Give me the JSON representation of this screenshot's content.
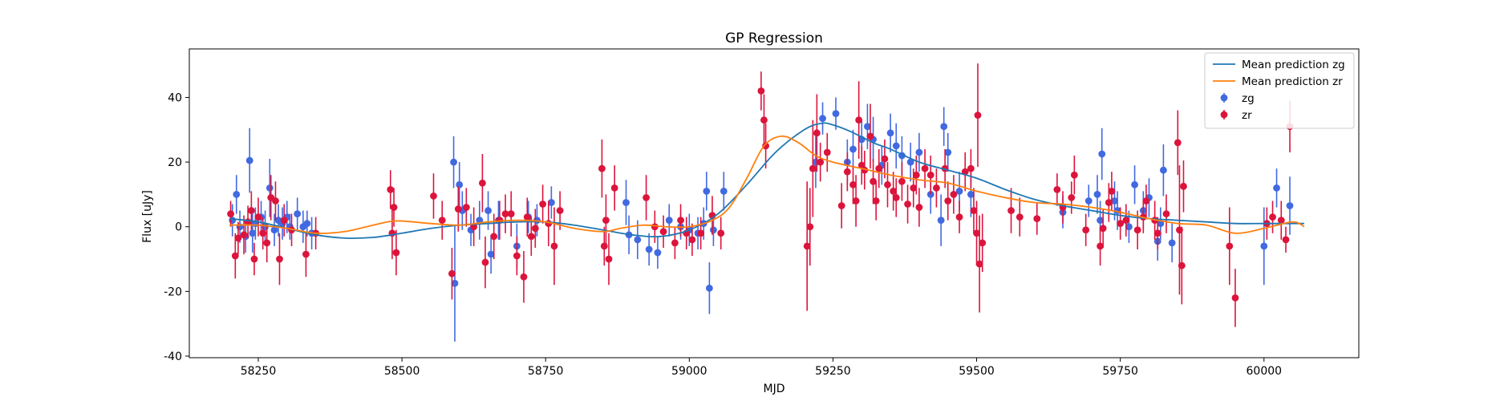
{
  "chart_data": {
    "type": "scatter",
    "title": "GP Regression",
    "xlabel": "MJD",
    "ylabel": "Flux [uJy]",
    "xlim": [
      58130,
      60165
    ],
    "ylim": [
      -40.5,
      55
    ],
    "xticks": [
      58250,
      58500,
      58750,
      59000,
      59250,
      59500,
      59750,
      60000
    ],
    "yticks": [
      -40,
      -20,
      0,
      20,
      40
    ],
    "legend_position": "top-right",
    "legend": [
      {
        "label": "Mean prediction zg",
        "kind": "line",
        "color": "#1f77b4"
      },
      {
        "label": "Mean prediction zr",
        "kind": "line",
        "color": "#ff7f0e"
      },
      {
        "label": "zg",
        "kind": "errorbar",
        "color": "#4169e1"
      },
      {
        "label": "zr",
        "kind": "errorbar",
        "color": "#dc143c"
      }
    ],
    "lines": [
      {
        "name": "Mean prediction zg",
        "color": "#1f77b4",
        "x": [
          58200,
          58250,
          58300,
          58350,
          58400,
          58450,
          58500,
          58550,
          58600,
          58650,
          58700,
          58750,
          58800,
          58850,
          58900,
          58950,
          59000,
          59050,
          59100,
          59150,
          59200,
          59230,
          59250,
          59280,
          59320,
          59350,
          59400,
          59450,
          59500,
          59550,
          59600,
          59650,
          59700,
          59750,
          59800,
          59850,
          59900,
          59950,
          60000,
          60050,
          60070
        ],
        "y": [
          2.5,
          1.5,
          -0.5,
          -2.5,
          -3.5,
          -3.3,
          -2,
          -0.5,
          0.5,
          1,
          1.5,
          1.5,
          0.5,
          -1,
          -2.5,
          -3,
          -1,
          4,
          13,
          23,
          30,
          32,
          31.5,
          29.5,
          26,
          24,
          20,
          17.5,
          15,
          11.5,
          8.5,
          6.5,
          5,
          3.5,
          2.5,
          2,
          1.5,
          1,
          1,
          1,
          1
        ]
      },
      {
        "name": "Mean prediction zr",
        "color": "#ff7f0e",
        "x": [
          58200,
          58250,
          58300,
          58350,
          58400,
          58450,
          58490,
          58550,
          58600,
          58650,
          58700,
          58750,
          58800,
          58850,
          58880,
          58920,
          58960,
          59000,
          59040,
          59070,
          59100,
          59130,
          59160,
          59190,
          59220,
          59250,
          59300,
          59350,
          59400,
          59450,
          59500,
          59550,
          59600,
          59650,
          59700,
          59750,
          59800,
          59850,
          59900,
          59950,
          60000,
          60050,
          60070
        ],
        "y": [
          0.5,
          0.5,
          -0.5,
          -2,
          -1.5,
          0.5,
          1.8,
          1,
          0.5,
          1.5,
          2,
          1.5,
          -0.5,
          -1.5,
          -0.5,
          0.5,
          0,
          0,
          2,
          6,
          15,
          25,
          28,
          26,
          22,
          20,
          18,
          16,
          14.5,
          13.5,
          11,
          9,
          7.5,
          7,
          6,
          4.5,
          2.5,
          1,
          0.5,
          -2,
          -0.5,
          1.5,
          0
        ]
      }
    ],
    "series": [
      {
        "name": "zg",
        "color": "#4169e1",
        "points": [
          [
            58205,
            2,
            5
          ],
          [
            58212,
            10,
            6
          ],
          [
            58218,
            0,
            5
          ],
          [
            58228,
            -3,
            5
          ],
          [
            58235,
            20.5,
            10
          ],
          [
            58240,
            -2,
            6
          ],
          [
            58245,
            1,
            5
          ],
          [
            58255,
            3,
            5
          ],
          [
            58262,
            0,
            5
          ],
          [
            58270,
            12,
            9
          ],
          [
            58278,
            -1,
            5
          ],
          [
            58285,
            2,
            5
          ],
          [
            58292,
            1,
            5
          ],
          [
            58300,
            3,
            5
          ],
          [
            58305,
            0,
            4
          ],
          [
            58318,
            4,
            5
          ],
          [
            58328,
            0,
            5
          ],
          [
            58335,
            1,
            4
          ],
          [
            58343,
            -2,
            5
          ],
          [
            58590,
            20,
            8
          ],
          [
            58592,
            -17.5,
            18
          ],
          [
            58600,
            13,
            7
          ],
          [
            58605,
            5,
            6
          ],
          [
            58620,
            -1,
            5
          ],
          [
            58635,
            2,
            6
          ],
          [
            58650,
            5,
            6
          ],
          [
            58655,
            -8.5,
            6
          ],
          [
            58668,
            2,
            6
          ],
          [
            58700,
            -6,
            7
          ],
          [
            58720,
            3,
            5
          ],
          [
            58735,
            2,
            5
          ],
          [
            58760,
            7.5,
            5
          ],
          [
            58890,
            7.5,
            7
          ],
          [
            58895,
            -2.5,
            6
          ],
          [
            58910,
            -4,
            6
          ],
          [
            58930,
            -7,
            5
          ],
          [
            58945,
            -8,
            5
          ],
          [
            58965,
            2,
            5
          ],
          [
            58985,
            0,
            4
          ],
          [
            59000,
            -1,
            5
          ],
          [
            59015,
            -2,
            5
          ],
          [
            59025,
            1,
            5
          ],
          [
            59030,
            11,
            6
          ],
          [
            59035,
            -19,
            8
          ],
          [
            59042,
            -1,
            5
          ],
          [
            59060,
            11,
            6
          ],
          [
            59220,
            20,
            8
          ],
          [
            59232,
            33.5,
            5
          ],
          [
            59255,
            35,
            5
          ],
          [
            59275,
            20,
            7
          ],
          [
            59285,
            24,
            6
          ],
          [
            59300,
            27,
            6
          ],
          [
            59310,
            31,
            7
          ],
          [
            59320,
            27,
            7
          ],
          [
            59335,
            19,
            6
          ],
          [
            59350,
            29,
            6
          ],
          [
            59360,
            25,
            7
          ],
          [
            59370,
            22,
            6
          ],
          [
            59385,
            20,
            6
          ],
          [
            59400,
            23,
            6
          ],
          [
            59420,
            10,
            6
          ],
          [
            59438,
            2,
            8
          ],
          [
            59443,
            31,
            6
          ],
          [
            59450,
            23,
            6
          ],
          [
            59470,
            11,
            6
          ],
          [
            59490,
            10,
            7
          ],
          [
            59650,
            4.5,
            5
          ],
          [
            59695,
            8,
            5
          ],
          [
            59710,
            10,
            6
          ],
          [
            59715,
            2,
            6
          ],
          [
            59718,
            22.5,
            8
          ],
          [
            59740,
            8,
            6
          ],
          [
            59745,
            5,
            6
          ],
          [
            59765,
            0,
            5
          ],
          [
            59775,
            13,
            6
          ],
          [
            59790,
            5,
            6
          ],
          [
            59800,
            9,
            6
          ],
          [
            59815,
            -4.5,
            6
          ],
          [
            59820,
            1,
            5
          ],
          [
            59825,
            17.5,
            8
          ],
          [
            59840,
            -5,
            6
          ],
          [
            60000,
            -6,
            12
          ],
          [
            60022,
            12,
            6
          ],
          [
            60045,
            6.5,
            9
          ]
        ]
      },
      {
        "name": "zr",
        "color": "#dc143c",
        "points": [
          [
            58202,
            4,
            4
          ],
          [
            58210,
            -9,
            7
          ],
          [
            58215,
            -3.5,
            5
          ],
          [
            58225,
            -2.5,
            6
          ],
          [
            58232,
            1.5,
            5
          ],
          [
            58238,
            5,
            6
          ],
          [
            58243,
            -10,
            5
          ],
          [
            58250,
            3,
            6
          ],
          [
            58258,
            -2,
            5
          ],
          [
            58265,
            -5,
            6
          ],
          [
            58272,
            9,
            7
          ],
          [
            58280,
            8,
            6
          ],
          [
            58287,
            -10,
            8
          ],
          [
            58295,
            2,
            5
          ],
          [
            58308,
            -1,
            5
          ],
          [
            58333,
            -8.5,
            7
          ],
          [
            58350,
            -2,
            5
          ],
          [
            58480,
            11.5,
            6
          ],
          [
            58483,
            -2,
            8
          ],
          [
            58486,
            6,
            6
          ],
          [
            58490,
            -8,
            7
          ],
          [
            58555,
            9.5,
            7
          ],
          [
            58570,
            2,
            6
          ],
          [
            58587,
            -14.5,
            8
          ],
          [
            58598,
            5.5,
            7
          ],
          [
            58612,
            6,
            6
          ],
          [
            58625,
            0,
            6
          ],
          [
            58640,
            13.5,
            9
          ],
          [
            58645,
            -11,
            8
          ],
          [
            58660,
            -3,
            7
          ],
          [
            58670,
            2,
            6
          ],
          [
            58680,
            4,
            6
          ],
          [
            58690,
            4,
            7
          ],
          [
            58700,
            -9,
            6
          ],
          [
            58712,
            -15.5,
            8
          ],
          [
            58718,
            3,
            6
          ],
          [
            58725,
            -3,
            6
          ],
          [
            58732,
            -0.5,
            6
          ],
          [
            58745,
            7,
            6
          ],
          [
            58755,
            1,
            7
          ],
          [
            58765,
            -6,
            12
          ],
          [
            58775,
            5,
            6
          ],
          [
            58848,
            18,
            9
          ],
          [
            58852,
            -6,
            6
          ],
          [
            58855,
            2,
            8
          ],
          [
            58860,
            -10,
            8
          ],
          [
            58870,
            12,
            7
          ],
          [
            58925,
            9,
            7
          ],
          [
            58940,
            0,
            5
          ],
          [
            58955,
            -1.5,
            5
          ],
          [
            58975,
            -5,
            5
          ],
          [
            58985,
            2,
            5
          ],
          [
            58995,
            -2,
            5
          ],
          [
            59005,
            -4,
            5
          ],
          [
            59020,
            -2,
            5
          ],
          [
            59040,
            3.5,
            6
          ],
          [
            59055,
            -2,
            5
          ],
          [
            59125,
            42,
            6
          ],
          [
            59130,
            33,
            8
          ],
          [
            59133,
            25,
            7
          ],
          [
            59205,
            -6,
            20
          ],
          [
            59210,
            0,
            12
          ],
          [
            59215,
            18,
            15
          ],
          [
            59222,
            29,
            12
          ],
          [
            59228,
            20,
            6
          ],
          [
            59240,
            23,
            6
          ],
          [
            59265,
            6.5,
            7
          ],
          [
            59275,
            17,
            6
          ],
          [
            59285,
            13,
            6
          ],
          [
            59290,
            8,
            8
          ],
          [
            59295,
            33,
            12
          ],
          [
            59300,
            19,
            6
          ],
          [
            59305,
            17.5,
            6
          ],
          [
            59315,
            28,
            10
          ],
          [
            59320,
            14,
            7
          ],
          [
            59325,
            8,
            6
          ],
          [
            59330,
            18,
            6
          ],
          [
            59340,
            21,
            6
          ],
          [
            59345,
            13,
            7
          ],
          [
            59355,
            11,
            6
          ],
          [
            59360,
            9,
            6
          ],
          [
            59370,
            14,
            6
          ],
          [
            59380,
            7,
            6
          ],
          [
            59390,
            12,
            6
          ],
          [
            59395,
            16,
            6
          ],
          [
            59400,
            6,
            6
          ],
          [
            59410,
            18,
            6
          ],
          [
            59420,
            16,
            6
          ],
          [
            59430,
            12,
            6
          ],
          [
            59445,
            18,
            6
          ],
          [
            59450,
            8,
            6
          ],
          [
            59460,
            10,
            6
          ],
          [
            59470,
            3,
            5
          ],
          [
            59480,
            17,
            6
          ],
          [
            59490,
            18,
            6
          ],
          [
            59495,
            5,
            7
          ],
          [
            59500,
            -2,
            10
          ],
          [
            59502,
            34.5,
            16
          ],
          [
            59505,
            -11.5,
            15
          ],
          [
            59510,
            -5,
            9
          ],
          [
            59560,
            5,
            7
          ],
          [
            59575,
            3,
            6
          ],
          [
            59605,
            2.5,
            5
          ],
          [
            59640,
            11.5,
            5
          ],
          [
            59650,
            6,
            5
          ],
          [
            59665,
            9,
            5
          ],
          [
            59670,
            16,
            6
          ],
          [
            59690,
            -1,
            5
          ],
          [
            59715,
            -6,
            6
          ],
          [
            59720,
            -0.5,
            6
          ],
          [
            59730,
            7.5,
            6
          ],
          [
            59735,
            11,
            6
          ],
          [
            59750,
            1,
            5
          ],
          [
            59760,
            2,
            5
          ],
          [
            59780,
            -1,
            6
          ],
          [
            59790,
            3,
            5
          ],
          [
            59795,
            8,
            5
          ],
          [
            59810,
            2,
            6
          ],
          [
            59815,
            -2,
            5
          ],
          [
            59830,
            4,
            6
          ],
          [
            59850,
            26,
            10
          ],
          [
            59853,
            -1,
            20
          ],
          [
            59857,
            -12,
            12
          ],
          [
            59860,
            12.5,
            8
          ],
          [
            59940,
            -6,
            12
          ],
          [
            59950,
            -22,
            9
          ],
          [
            60005,
            1,
            5
          ],
          [
            60015,
            3,
            5
          ],
          [
            60030,
            2,
            6
          ],
          [
            60038,
            -4,
            4
          ],
          [
            60045,
            31,
            8
          ]
        ]
      }
    ]
  }
}
